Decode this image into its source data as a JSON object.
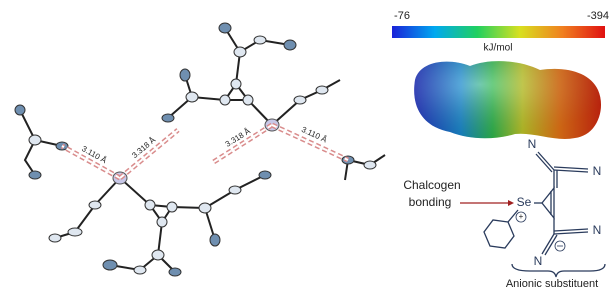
{
  "colorbar": {
    "min": -76,
    "max": -394,
    "unit": "kJ/mol"
  },
  "distances": [
    "3.110 Å",
    "3.318 Å",
    "3.318 Å",
    "3.110 Å"
  ],
  "annotation": {
    "line1": "Chalcogen",
    "line2": "bonding"
  },
  "structure": {
    "atom": "Se",
    "charge": "+",
    "nitrogens": [
      "N",
      "N",
      "N",
      "N"
    ]
  },
  "caption": "Anionic substituent"
}
